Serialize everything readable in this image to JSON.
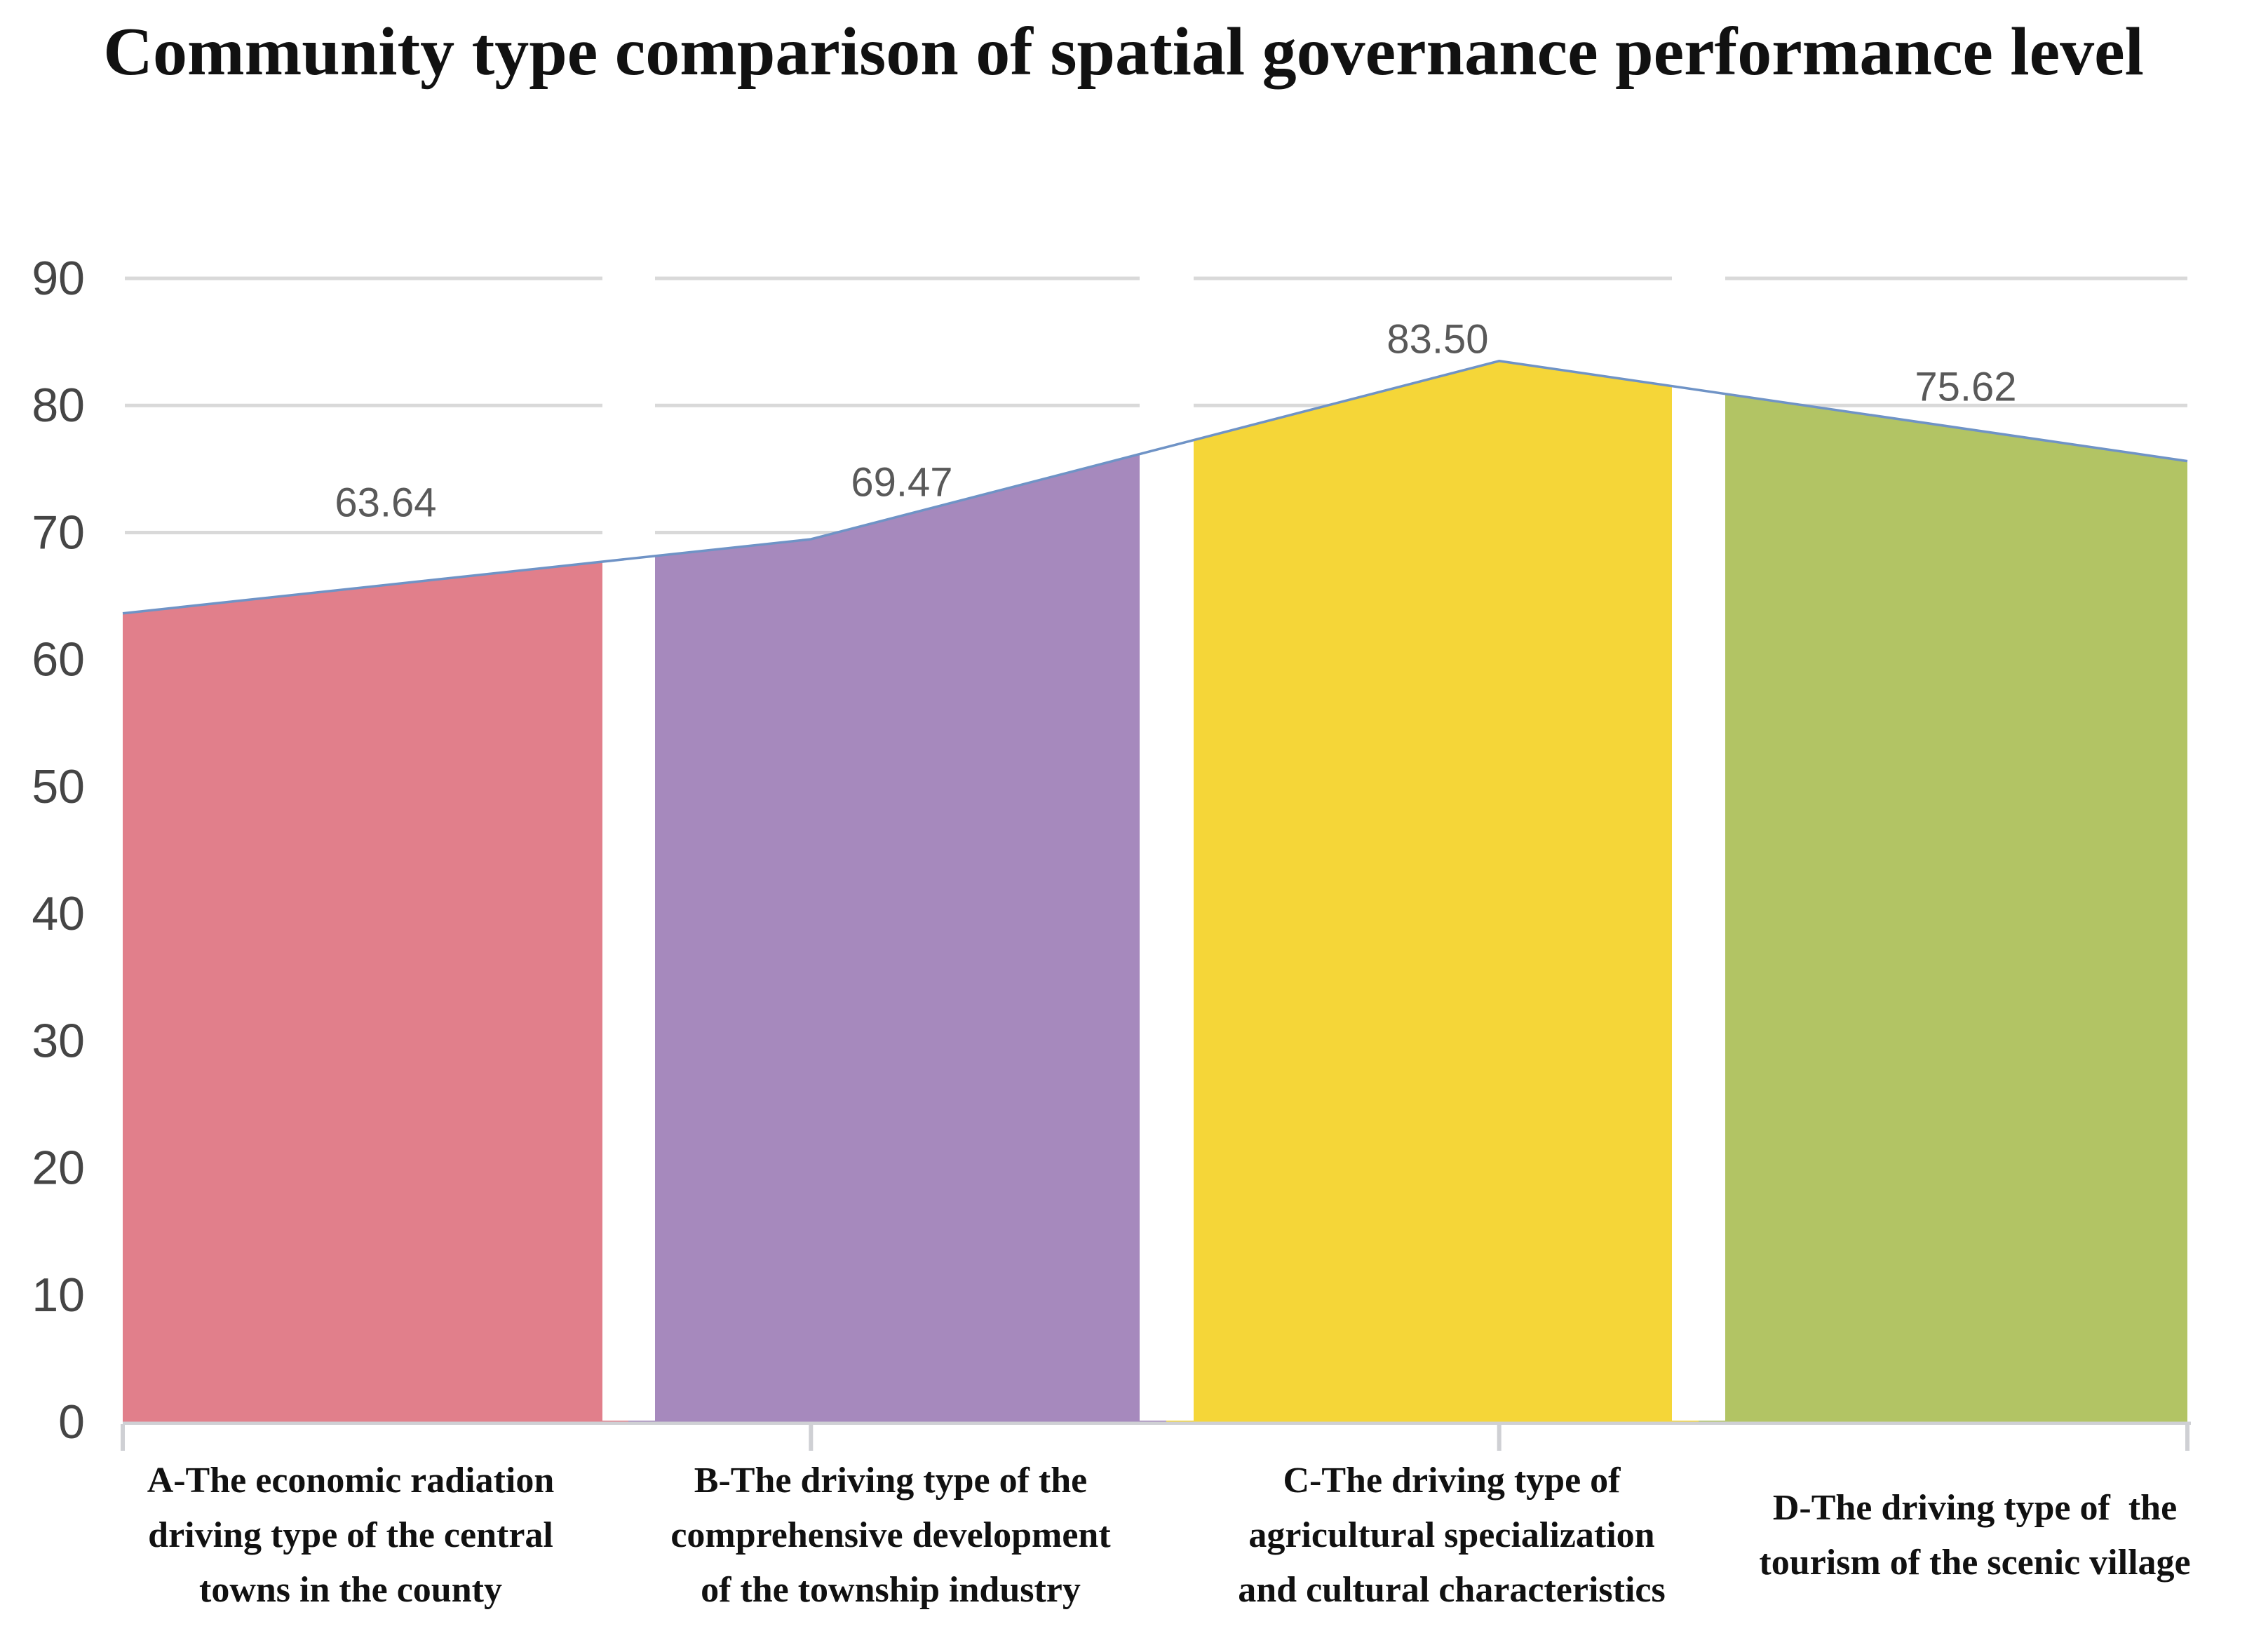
{
  "title": "Community type comparison of spatial governance performance level",
  "chart_data": {
    "type": "area",
    "title": "Community type comparison of spatial governance performance level",
    "categories": [
      "A-The economic radiation driving type of the central towns in the county",
      "B-The driving type of the comprehensive development of the township industry",
      "C-The driving type of agricultural specialization and cultural characteristics",
      "D-The driving type of  the tourism of the scenic village"
    ],
    "category_lines": [
      [
        "A-The economic radiation",
        "driving type of the central",
        "towns in the county"
      ],
      [
        "B-The driving type of the",
        "comprehensive development",
        "of the township industry"
      ],
      [
        "C-The driving type of",
        "agricultural specialization",
        "and cultural characteristics"
      ],
      [
        "D-The driving type of  the",
        "tourism of the scenic village"
      ]
    ],
    "values": [
      63.64,
      69.47,
      83.5,
      75.62
    ],
    "value_labels": [
      "63.64",
      "69.47",
      "83.50",
      "75.62"
    ],
    "xlabel": "",
    "ylabel": "",
    "ylim": [
      0,
      90
    ],
    "yticks": [
      0,
      10,
      20,
      30,
      40,
      50,
      60,
      70,
      80,
      90
    ],
    "ytick_labels": [
      "0",
      "10",
      "20",
      "30",
      "40",
      "50",
      "60",
      "70",
      "80",
      "90"
    ],
    "grid": true,
    "legend": false,
    "style": "area chart with per-category colored slices separated by white gaps, thin blue top line",
    "colors": {
      "bands": [
        "#e17f8b",
        "#a689bd",
        "#f5d638",
        "#b2c464"
      ],
      "line": "#6f93c6",
      "grid": "#d9d9d9",
      "axis": "#cfd0d4",
      "value_label": "#595959",
      "tick_label": "#454545",
      "title": "#111111",
      "category": "#111111"
    }
  }
}
